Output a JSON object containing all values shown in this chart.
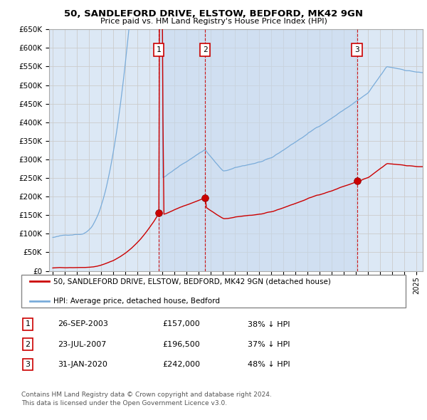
{
  "title": "50, SANDLEFORD DRIVE, ELSTOW, BEDFORD, MK42 9GN",
  "subtitle": "Price paid vs. HM Land Registry's House Price Index (HPI)",
  "background_color": "#ffffff",
  "grid_color": "#cccccc",
  "plot_bg_color": "#dce8f5",
  "red_color": "#cc0000",
  "blue_color": "#7aacda",
  "shade_color": "#c5d8ee",
  "ylim": [
    0,
    650000
  ],
  "yticks": [
    0,
    50000,
    100000,
    150000,
    200000,
    250000,
    300000,
    350000,
    400000,
    450000,
    500000,
    550000,
    600000,
    650000
  ],
  "ytick_labels": [
    "£0",
    "£50K",
    "£100K",
    "£150K",
    "£200K",
    "£250K",
    "£300K",
    "£350K",
    "£400K",
    "£450K",
    "£500K",
    "£550K",
    "£600K",
    "£650K"
  ],
  "transactions": [
    {
      "date": "26-SEP-2003",
      "price": 157000,
      "x": 2003.74,
      "label": "1"
    },
    {
      "date": "23-JUL-2007",
      "price": 196500,
      "x": 2007.56,
      "label": "2"
    },
    {
      "date": "31-JAN-2020",
      "price": 242000,
      "x": 2020.08,
      "label": "3"
    }
  ],
  "legend_line1": "50, SANDLEFORD DRIVE, ELSTOW, BEDFORD, MK42 9GN (detached house)",
  "legend_line2": "HPI: Average price, detached house, Bedford",
  "footer1": "Contains HM Land Registry data © Crown copyright and database right 2024.",
  "footer2": "This data is licensed under the Open Government Licence v3.0.",
  "table_rows": [
    [
      "1",
      "26-SEP-2003",
      "£157,000",
      "38% ↓ HPI"
    ],
    [
      "2",
      "23-JUL-2007",
      "£196,500",
      "37% ↓ HPI"
    ],
    [
      "3",
      "31-JAN-2020",
      "£242,000",
      "48% ↓ HPI"
    ]
  ]
}
